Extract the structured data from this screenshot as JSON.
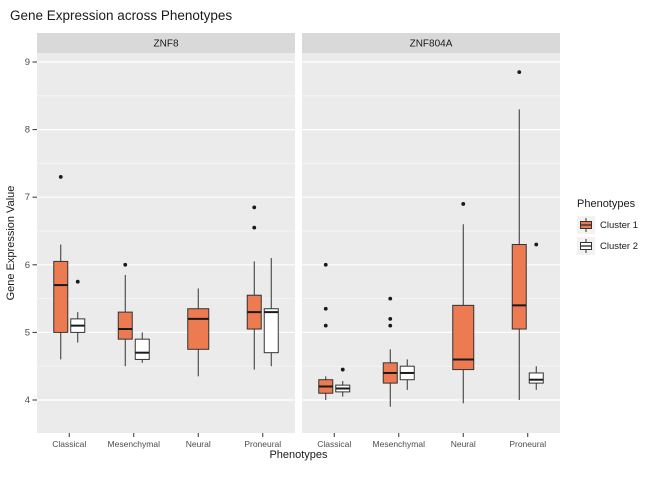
{
  "chart_data": {
    "type": "boxplot",
    "title": "Gene Expression across Phenotypes",
    "xlabel": "Phenotypes",
    "ylabel": "Gene Expression Value",
    "legend_title": "Phenotypes",
    "ylim": [
      3.5,
      9.2
    ],
    "yticks": [
      4,
      5,
      6,
      7,
      8,
      9
    ],
    "yminor": [
      4.5,
      5.5,
      6.5,
      7.5,
      8.5
    ],
    "categories": [
      "Classical",
      "Mesenchymal",
      "Neural",
      "Proneural"
    ],
    "series": [
      {
        "name": "Cluster 1",
        "fill": "#EC7B52"
      },
      {
        "name": "Cluster 2",
        "fill": "#FFFFFF"
      }
    ],
    "theme": {
      "panel_bg": "#EBEBEB",
      "strip_bg": "#D9D9D9",
      "grid_major": "#FFFFFF",
      "grid_minor": "#F5F5F5",
      "box_stroke": "#333333",
      "median_stroke": "#1A1A1A",
      "tick_text": "#4D4D4D",
      "outlier_fill": "#1A1A1A"
    },
    "facets": [
      {
        "label": "ZNF8",
        "boxes": [
          {
            "category": "Classical",
            "series": "Cluster 1",
            "low": 4.6,
            "q1": 5.0,
            "median": 5.7,
            "q3": 6.05,
            "high": 6.3,
            "outliers": [
              7.3
            ]
          },
          {
            "category": "Classical",
            "series": "Cluster 2",
            "low": 4.85,
            "q1": 5.0,
            "median": 5.1,
            "q3": 5.2,
            "high": 5.3,
            "outliers": [
              5.75
            ]
          },
          {
            "category": "Mesenchymal",
            "series": "Cluster 1",
            "low": 4.5,
            "q1": 4.9,
            "median": 5.05,
            "q3": 5.3,
            "high": 5.85,
            "outliers": [
              6.0
            ]
          },
          {
            "category": "Mesenchymal",
            "series": "Cluster 2",
            "low": 4.55,
            "q1": 4.6,
            "median": 4.7,
            "q3": 4.9,
            "high": 5.0,
            "outliers": []
          },
          {
            "category": "Neural",
            "series": "Cluster 1",
            "low": 4.35,
            "q1": 4.75,
            "median": 5.2,
            "q3": 5.35,
            "high": 5.65,
            "outliers": []
          },
          {
            "category": "Proneural",
            "series": "Cluster 1",
            "low": 4.45,
            "q1": 5.05,
            "median": 5.3,
            "q3": 5.55,
            "high": 6.05,
            "outliers": [
              6.55,
              6.85
            ]
          },
          {
            "category": "Proneural",
            "series": "Cluster 2",
            "low": 4.5,
            "q1": 4.7,
            "median": 5.3,
            "q3": 5.35,
            "high": 6.1,
            "outliers": []
          }
        ]
      },
      {
        "label": "ZNF804A",
        "boxes": [
          {
            "category": "Classical",
            "series": "Cluster 1",
            "low": 4.0,
            "q1": 4.1,
            "median": 4.2,
            "q3": 4.3,
            "high": 4.35,
            "outliers": [
              5.1,
              5.35,
              6.0
            ]
          },
          {
            "category": "Classical",
            "series": "Cluster 2",
            "low": 4.05,
            "q1": 4.12,
            "median": 4.17,
            "q3": 4.22,
            "high": 4.28,
            "outliers": [
              4.45
            ]
          },
          {
            "category": "Mesenchymal",
            "series": "Cluster 1",
            "low": 3.9,
            "q1": 4.25,
            "median": 4.4,
            "q3": 4.55,
            "high": 4.75,
            "outliers": [
              5.1,
              5.2,
              5.5
            ]
          },
          {
            "category": "Mesenchymal",
            "series": "Cluster 2",
            "low": 4.15,
            "q1": 4.3,
            "median": 4.4,
            "q3": 4.5,
            "high": 4.6,
            "outliers": []
          },
          {
            "category": "Neural",
            "series": "Cluster 1",
            "low": 3.95,
            "q1": 4.45,
            "median": 4.6,
            "q3": 5.4,
            "high": 6.6,
            "outliers": [
              6.9
            ]
          },
          {
            "category": "Proneural",
            "series": "Cluster 1",
            "low": 4.0,
            "q1": 5.05,
            "median": 5.4,
            "q3": 6.3,
            "high": 8.3,
            "outliers": [
              8.85
            ]
          },
          {
            "category": "Proneural",
            "series": "Cluster 2",
            "low": 4.15,
            "q1": 4.25,
            "median": 4.3,
            "q3": 4.4,
            "high": 4.5,
            "outliers": [
              6.3
            ]
          }
        ]
      }
    ]
  }
}
